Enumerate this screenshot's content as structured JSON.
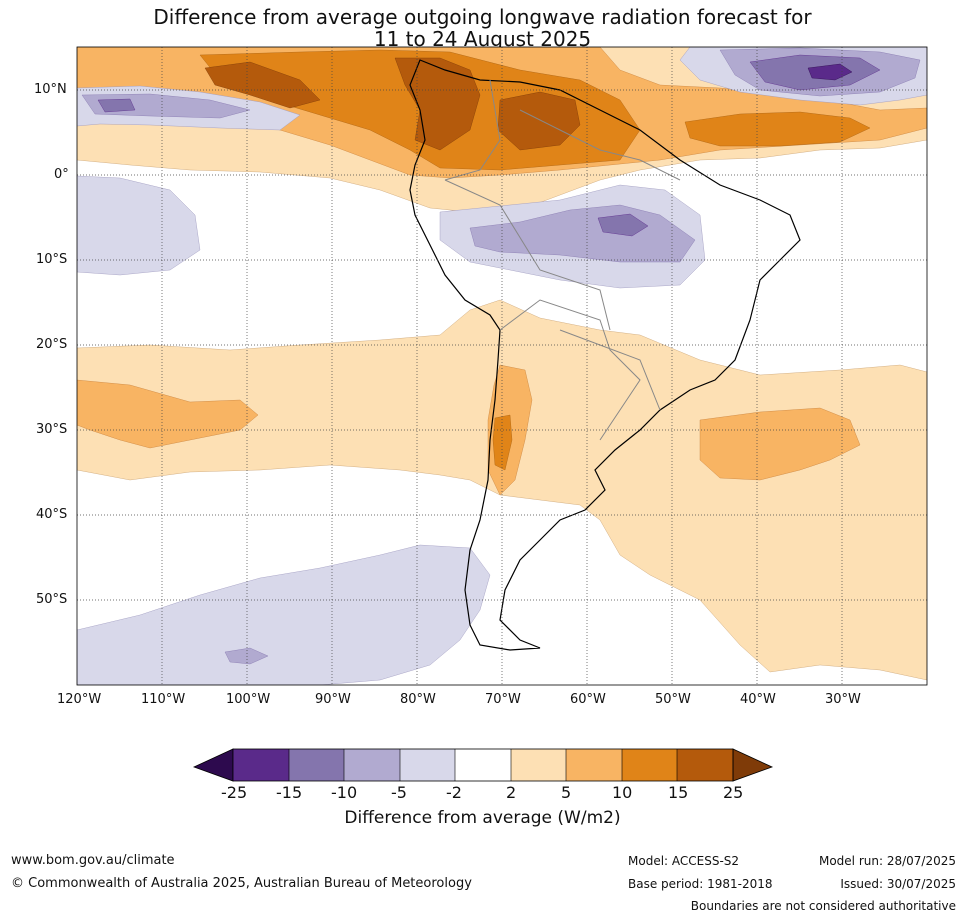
{
  "title": {
    "line1": "Difference from average outgoing longwave radiation forecast for",
    "line2": "11 to 24 August 2025"
  },
  "map": {
    "region": "South America",
    "lat_labels": [
      "10°N",
      "0°",
      "10°S",
      "20°S",
      "30°S",
      "40°S",
      "50°S"
    ],
    "lon_labels": [
      "120°W",
      "110°W",
      "100°W",
      "90°W",
      "80°W",
      "70°W",
      "60°W",
      "50°W",
      "40°W",
      "30°W"
    ],
    "gridlines": "dotted"
  },
  "legend": {
    "title": "Difference from average (W/m2)",
    "tick_labels": [
      "-25",
      "-15",
      "-10",
      "-5",
      "-2",
      "2",
      "5",
      "10",
      "15",
      "25"
    ],
    "colors": [
      "#2d0a4e",
      "#5a2a8a",
      "#8475ad",
      "#b1aad0",
      "#d8d8ea",
      "#ffffff",
      "#fde0b4",
      "#f8b463",
      "#e08418",
      "#b45a0c",
      "#7f3b08"
    ],
    "extends": "both"
  },
  "footer": {
    "website": "www.bom.gov.au/climate",
    "copyright": "© Commonwealth of Australia 2025, Australian Bureau of Meteorology",
    "model": "Model: ACCESS-S2",
    "base_period": "Base period: 1981-2018",
    "model_run": "Model run: 28/07/2025",
    "issued": "Issued: 30/07/2025",
    "disclaimer": "Boundaries are not considered authoritative"
  }
}
